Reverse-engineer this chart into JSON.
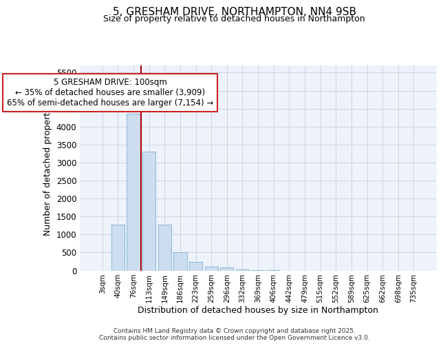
{
  "title1": "5, GRESHAM DRIVE, NORTHAMPTON, NN4 9SB",
  "title2": "Size of property relative to detached houses in Northampton",
  "xlabel": "Distribution of detached houses by size in Northampton",
  "ylabel": "Number of detached properties",
  "categories": [
    "3sqm",
    "40sqm",
    "76sqm",
    "113sqm",
    "149sqm",
    "186sqm",
    "223sqm",
    "259sqm",
    "296sqm",
    "332sqm",
    "369sqm",
    "406sqm",
    "442sqm",
    "479sqm",
    "515sqm",
    "552sqm",
    "589sqm",
    "625sqm",
    "662sqm",
    "698sqm",
    "735sqm"
  ],
  "values": [
    0,
    1270,
    4350,
    3300,
    1280,
    500,
    230,
    110,
    80,
    20,
    10,
    10,
    0,
    0,
    0,
    0,
    0,
    0,
    0,
    0,
    0
  ],
  "bar_color": "#ccddf0",
  "bar_edge_color": "#7bafd4",
  "vline_x": 2.5,
  "vline_color": "#aa0000",
  "annotation_line1": "5 GRESHAM DRIVE: 100sqm",
  "annotation_line2": "← 35% of detached houses are smaller (3,909)",
  "annotation_line3": "65% of semi-detached houses are larger (7,154) →",
  "annotation_box_color": "white",
  "annotation_box_edge": "#cc2222",
  "ylim_max": 5700,
  "yticks": [
    0,
    500,
    1000,
    1500,
    2000,
    2500,
    3000,
    3500,
    4000,
    4500,
    5000,
    5500
  ],
  "footer1": "Contains HM Land Registry data © Crown copyright and database right 2025.",
  "footer2": "Contains public sector information licensed under the Open Government Licence v3.0.",
  "plot_bg_color": "#eef2fa",
  "grid_color": "#c8d4e8"
}
